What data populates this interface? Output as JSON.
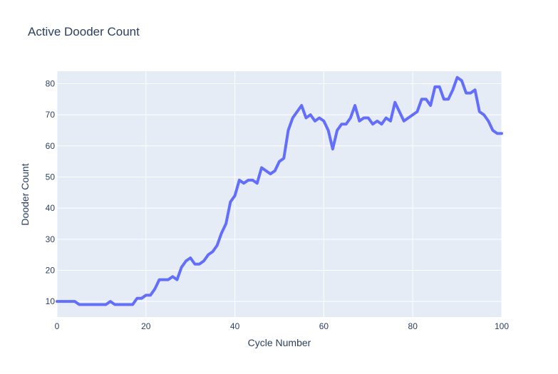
{
  "chart_data": {
    "type": "line",
    "title": "Active Dooder Count",
    "xlabel": "Cycle Number",
    "ylabel": "Dooder Count",
    "xlim": [
      0,
      100
    ],
    "ylim": [
      5,
      84
    ],
    "x_ticks": [
      0,
      20,
      40,
      60,
      80,
      100
    ],
    "y_ticks": [
      10,
      20,
      30,
      40,
      50,
      60,
      70,
      80
    ],
    "grid": true,
    "colors": {
      "line": "#636efa",
      "plot_bg": "#e5ecf6",
      "grid": "#ffffff",
      "text": "#2a3f5f"
    },
    "series": [
      {
        "x": [
          0,
          1,
          2,
          3,
          4,
          5,
          6,
          7,
          8,
          9,
          10,
          11,
          12,
          13,
          14,
          15,
          16,
          17,
          18,
          19,
          20,
          21,
          22,
          23,
          24,
          25,
          26,
          27,
          28,
          29,
          30,
          31,
          32,
          33,
          34,
          35,
          36,
          37,
          38,
          39,
          40,
          41,
          42,
          43,
          44,
          45,
          46,
          47,
          48,
          49,
          50,
          51,
          52,
          53,
          54,
          55,
          56,
          57,
          58,
          59,
          60,
          61,
          62,
          63,
          64,
          65,
          66,
          67,
          68,
          69,
          70,
          71,
          72,
          73,
          74,
          75,
          76,
          77,
          78,
          79,
          80,
          81,
          82,
          83,
          84,
          85,
          86,
          87,
          88,
          89,
          90,
          91,
          92,
          93,
          94,
          95,
          96,
          97,
          98,
          99,
          100
        ],
        "y": [
          10,
          10,
          10,
          10,
          10,
          9,
          9,
          9,
          9,
          9,
          9,
          9,
          10,
          9,
          9,
          9,
          9,
          9,
          11,
          11,
          12,
          12,
          14,
          17,
          17,
          17,
          18,
          17,
          21,
          23,
          24,
          22,
          22,
          23,
          25,
          26,
          28,
          32,
          35,
          42,
          44,
          49,
          48,
          49,
          49,
          48,
          53,
          52,
          51,
          52,
          55,
          56,
          65,
          69,
          71,
          73,
          69,
          70,
          68,
          69,
          68,
          65,
          59,
          65,
          67,
          67,
          69,
          73,
          68,
          69,
          69,
          67,
          68,
          67,
          69,
          68,
          74,
          71,
          68,
          69,
          70,
          71,
          75,
          75,
          73,
          79,
          79,
          75,
          75,
          78,
          82,
          81,
          77,
          77,
          78,
          71,
          70,
          68,
          65,
          64,
          64
        ]
      }
    ]
  }
}
